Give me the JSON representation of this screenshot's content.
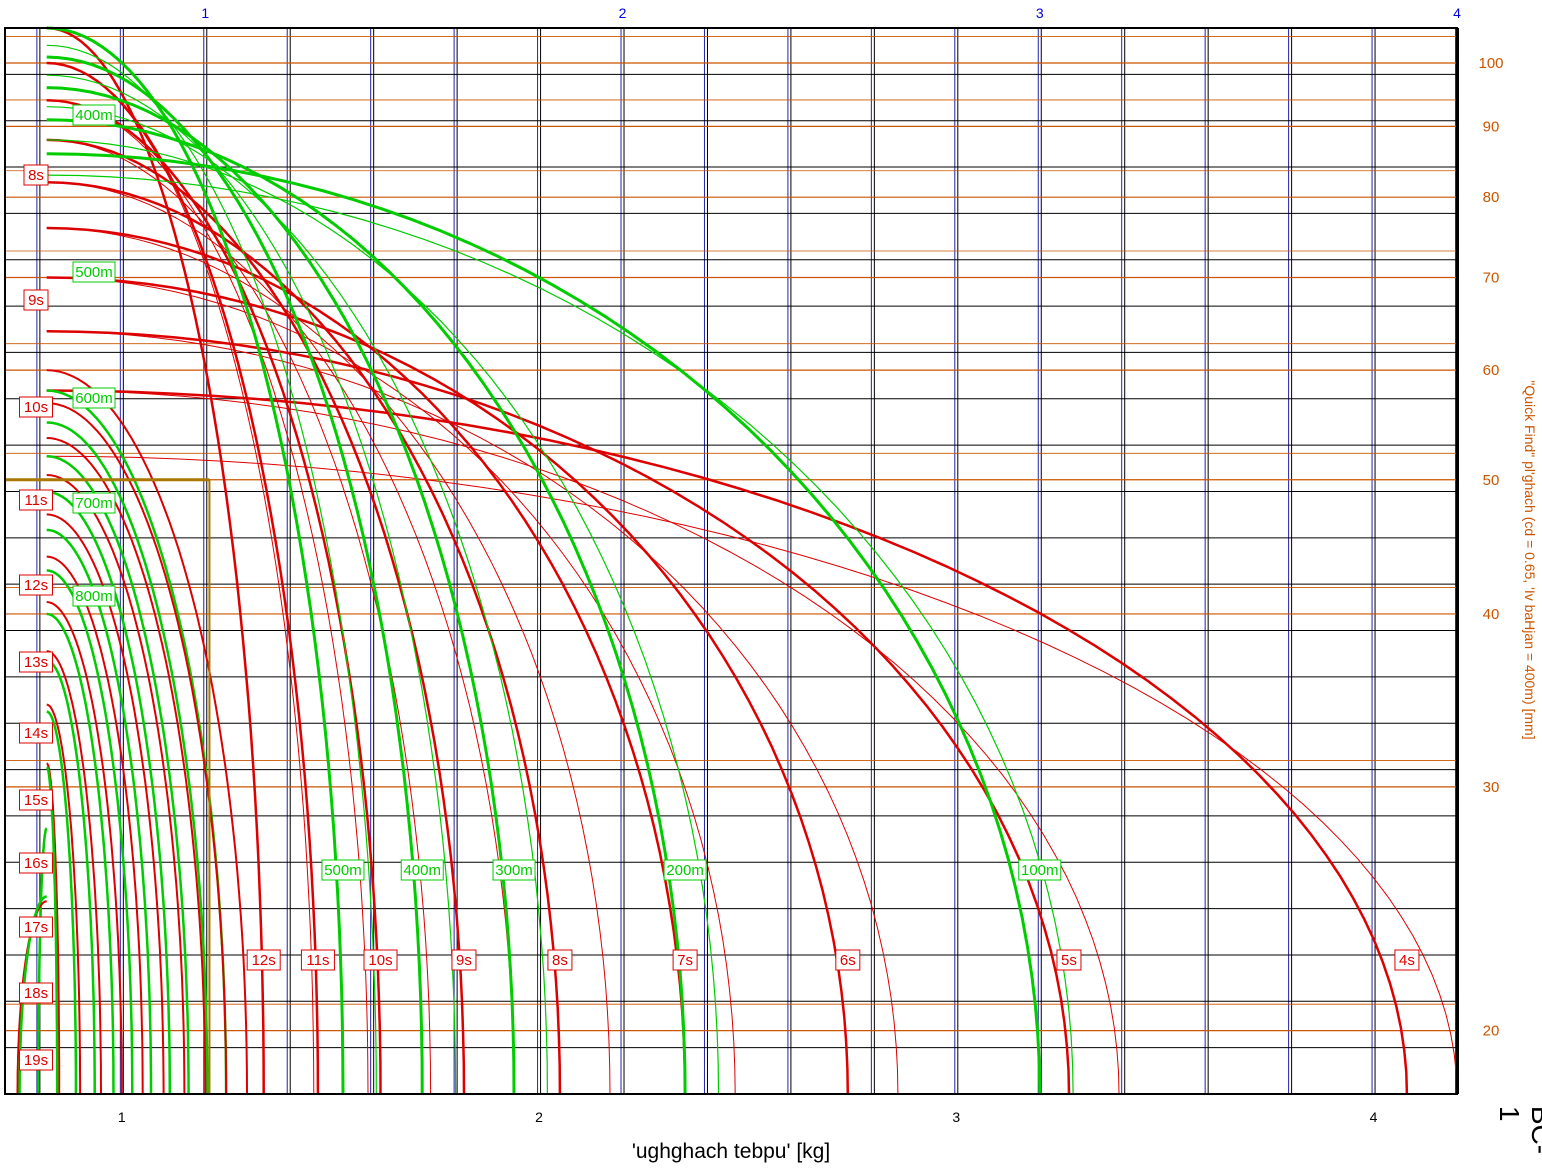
{
  "chart_data": {
    "type": "line",
    "xlabel": "'ughghach tebpu' [kg]",
    "ylabel_right": "\"Quick Find\" pl'ghach (cd = 0.65, 'Iv baHjan = 400m) [mm]",
    "code": "BC-1",
    "xlim": [
      0.72,
      4.2
    ],
    "ylim_right": [
      18,
      106
    ],
    "y_scale": "log",
    "x_ticks_bottom": [
      1,
      2,
      3,
      4
    ],
    "x_ticks_top": [
      1,
      2,
      3,
      4
    ],
    "y_ticks_right": [
      20,
      30,
      40,
      50,
      60,
      70,
      80,
      90,
      100
    ],
    "minor_gridlines_count_x": 5,
    "minor_gridlines_count_y": 19,
    "colors": {
      "time": "#dd0000",
      "distance": "#00cc00",
      "right_axis": "#cc5500",
      "top_axis": "#0000dd",
      "vertical_grid": "#2222aa",
      "horizontal_grid": "#000000",
      "minor_horizontal": "#cc5500",
      "marker": "#aa7700"
    },
    "time_labels_bottom": [
      {
        "label": "12s",
        "x": 1.34
      },
      {
        "label": "11s",
        "x": 1.47
      },
      {
        "label": "10s",
        "x": 1.62
      },
      {
        "label": "9s",
        "x": 1.82
      },
      {
        "label": "8s",
        "x": 2.05
      },
      {
        "label": "7s",
        "x": 2.35
      },
      {
        "label": "6s",
        "x": 2.74
      },
      {
        "label": "5s",
        "x": 3.27
      },
      {
        "label": "4s",
        "x": 4.08
      }
    ],
    "time_labels_left": [
      "8s",
      "9s",
      "10s",
      "11s",
      "12s",
      "13s",
      "14s",
      "15s",
      "16s",
      "17s",
      "18s",
      "19s"
    ],
    "distance_labels_bottom": [
      {
        "label": "500m",
        "x": 1.53
      },
      {
        "label": "400m",
        "x": 1.72
      },
      {
        "label": "300m",
        "x": 1.94
      },
      {
        "label": "200m",
        "x": 2.35
      },
      {
        "label": "100m",
        "x": 3.2
      }
    ],
    "distance_labels_left": [
      "400m",
      "500m",
      "600m",
      "700m",
      "800m"
    ],
    "marker": {
      "x": 1.21,
      "y": 50
    }
  }
}
